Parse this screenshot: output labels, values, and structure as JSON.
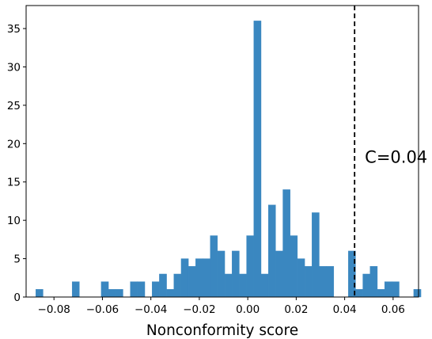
{
  "chart_data": {
    "type": "bar",
    "subtype": "histogram",
    "xlabel": "Nonconformity score",
    "ylabel": "",
    "xlim": [
      -0.0915,
      0.0705
    ],
    "ylim": [
      0,
      38
    ],
    "xticks": [
      -0.08,
      -0.06,
      -0.04,
      -0.02,
      0.0,
      0.02,
      0.04,
      0.06
    ],
    "xtick_labels": [
      "−0.08",
      "−0.06",
      "−0.04",
      "−0.02",
      "0.00",
      "0.02",
      "0.04",
      "0.06"
    ],
    "yticks": [
      0,
      5,
      10,
      15,
      20,
      25,
      30,
      35
    ],
    "ytick_labels": [
      "0",
      "5",
      "10",
      "15",
      "20",
      "25",
      "30",
      "35"
    ],
    "grid": false,
    "bar_color": "#3a87c0",
    "bin_edges_first": -0.0875,
    "bin_width": 0.003,
    "counts": [
      1,
      0,
      0,
      0,
      0,
      2,
      0,
      0,
      0,
      2,
      1,
      1,
      0,
      2,
      2,
      0,
      2,
      3,
      1,
      3,
      5,
      4,
      5,
      5,
      8,
      6,
      3,
      6,
      3,
      8,
      36,
      3,
      12,
      6,
      14,
      8,
      5,
      4,
      11,
      4,
      4,
      0,
      0,
      6,
      1,
      3,
      4,
      1,
      2,
      2,
      0,
      0,
      1
    ],
    "threshold": {
      "x": 0.0441,
      "label": "C=0.04",
      "style": "dashed",
      "color": "#000000"
    }
  }
}
